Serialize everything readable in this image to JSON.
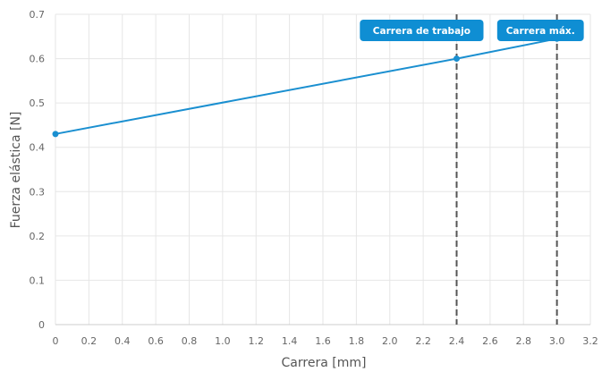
{
  "chart_data": {
    "type": "line",
    "xlabel": "Carrera [mm]",
    "ylabel": "Fuerza elástica [N]",
    "xlim": [
      0,
      3.2
    ],
    "ylim": [
      0,
      0.7
    ],
    "x_ticks": [
      "0",
      "0.2",
      "0.4",
      "0.6",
      "0.8",
      "1.0",
      "1.2",
      "1.4",
      "1.6",
      "1.8",
      "2.0",
      "2.2",
      "2.4",
      "2.6",
      "2.8",
      "3.0",
      "3.2"
    ],
    "y_ticks": [
      "0",
      "0.1",
      "0.2",
      "0.3",
      "0.4",
      "0.5",
      "0.6",
      "0.7"
    ],
    "grid": true,
    "series": [
      {
        "color": "#1a8fd0",
        "points": [
          {
            "x": 0,
            "y": 0.43
          },
          {
            "x": 2.4,
            "y": 0.6
          },
          {
            "x": 3.0,
            "y": 0.645
          }
        ]
      }
    ],
    "markers": [
      {
        "x": 2.4,
        "label": "Carrera de trabajo"
      },
      {
        "x": 3.0,
        "label": "Carrera máx."
      }
    ]
  },
  "colors": {
    "series": "#1a8fd0",
    "badge": "#0f8ed3",
    "grid": "#e6e6e6",
    "marker_line": "#555555"
  }
}
